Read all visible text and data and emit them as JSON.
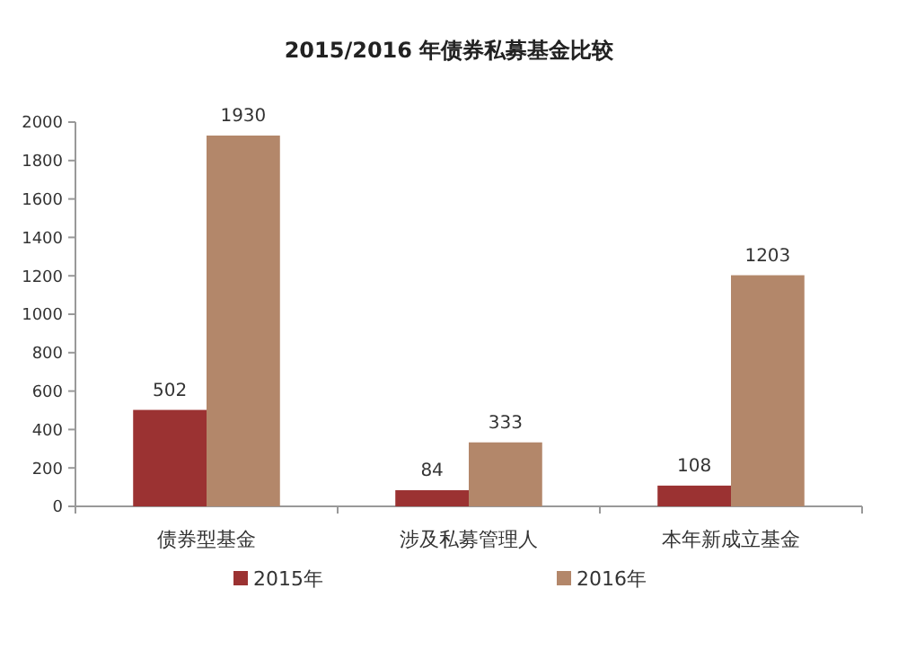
{
  "chart_data": {
    "type": "bar",
    "title": "2015/2016 年债券私募基金比较",
    "categories": [
      "债券型基金",
      "涉及私募管理人",
      "本年新成立基金"
    ],
    "series": [
      {
        "name": "2015年",
        "color": "#9b3232",
        "values": [
          502,
          84,
          108
        ]
      },
      {
        "name": "2016年",
        "color": "#b3876a",
        "values": [
          1930,
          333,
          1203
        ]
      }
    ],
    "ylim": [
      0,
      2000
    ],
    "yticks": [
      0,
      200,
      400,
      600,
      800,
      1000,
      1200,
      1400,
      1600,
      1800,
      2000
    ],
    "grid": false,
    "legend": "bottom",
    "data_labels": true
  }
}
